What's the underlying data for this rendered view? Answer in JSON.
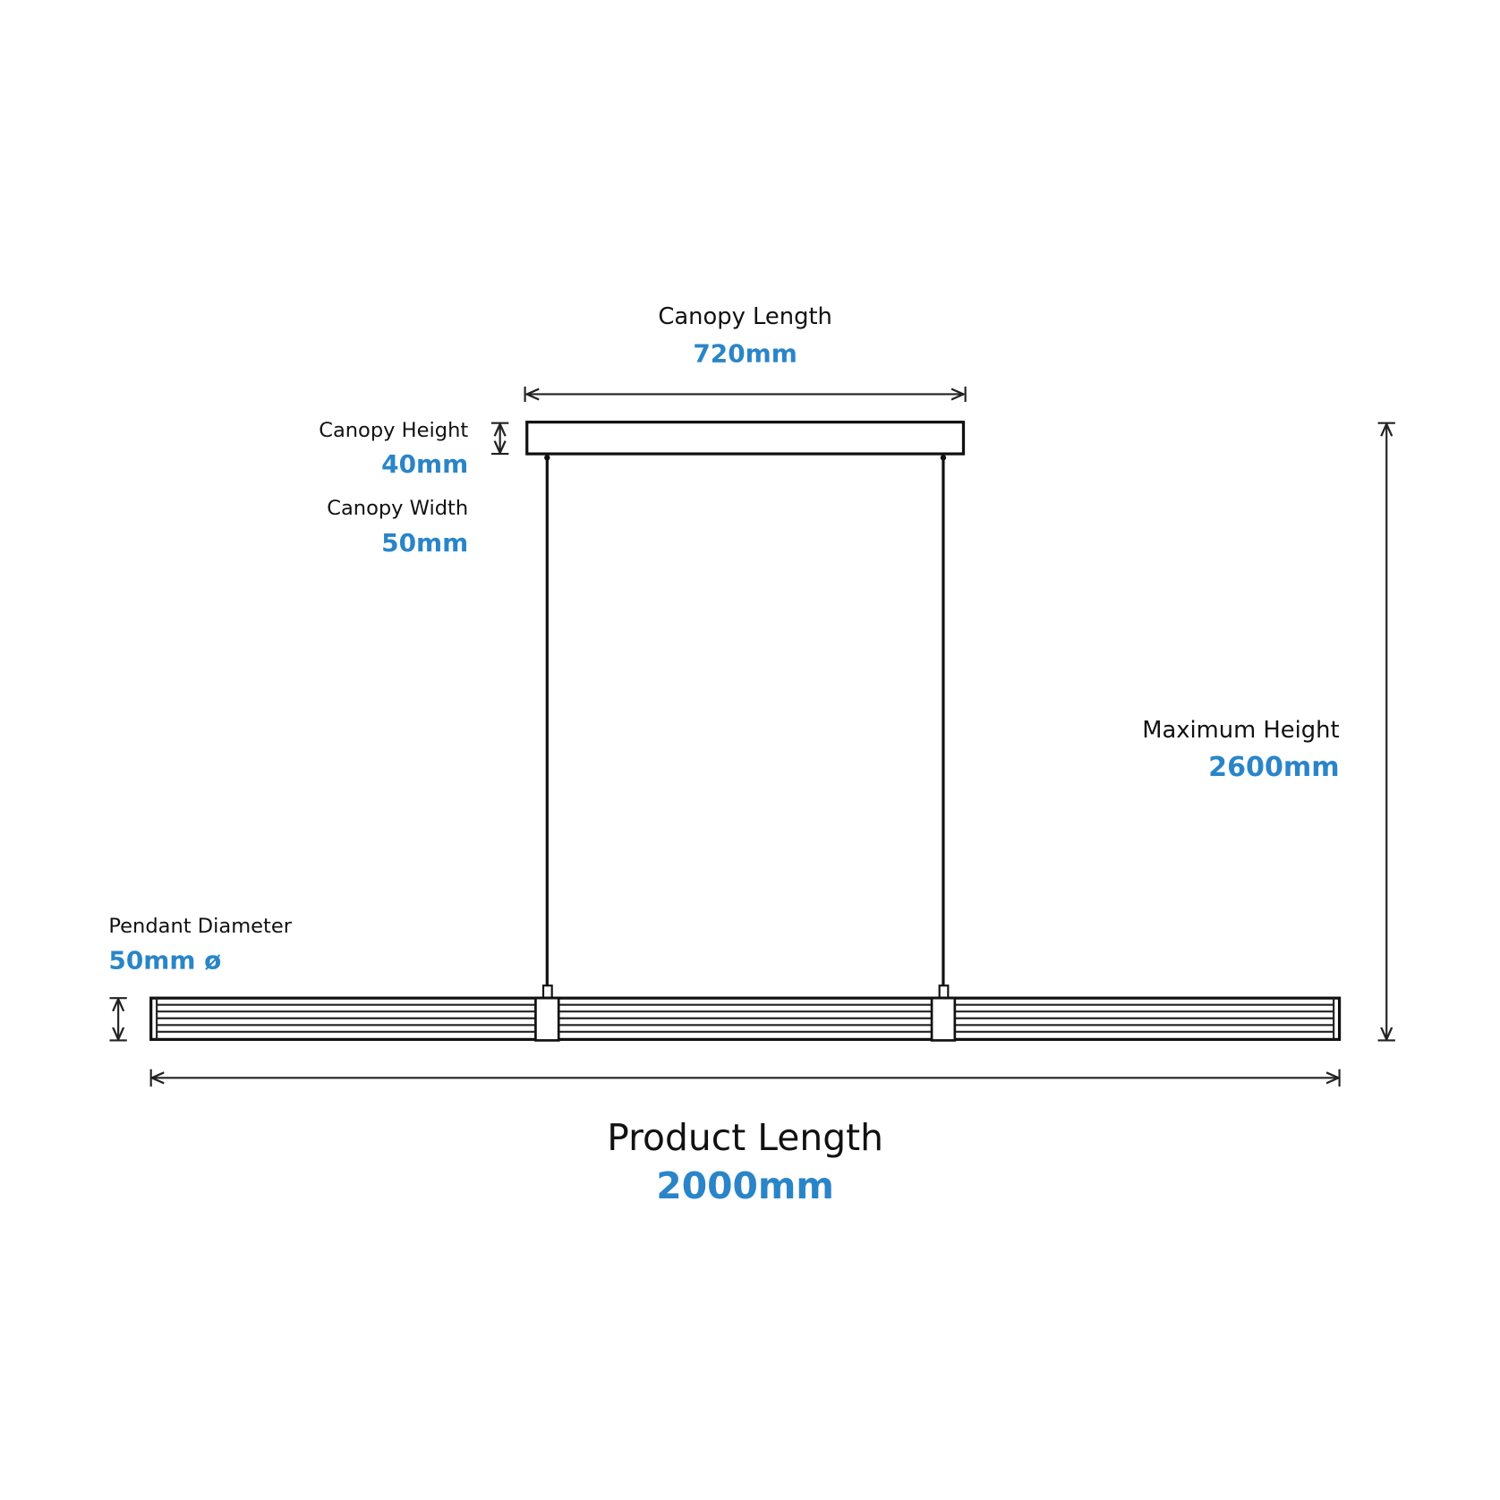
{
  "dimensions": {
    "canopy_length": {
      "label": "Canopy Length",
      "value": "720mm"
    },
    "canopy_height": {
      "label": "Canopy Height",
      "value": "40mm"
    },
    "canopy_width": {
      "label": "Canopy Width",
      "value": "50mm"
    },
    "maximum_height": {
      "label": "Maximum Height",
      "value": "2600mm"
    },
    "pendant_diameter": {
      "label": "Pendant Diameter",
      "value": "50mm ø"
    },
    "product_length": {
      "label": "Product Length",
      "value": "2000mm"
    }
  }
}
